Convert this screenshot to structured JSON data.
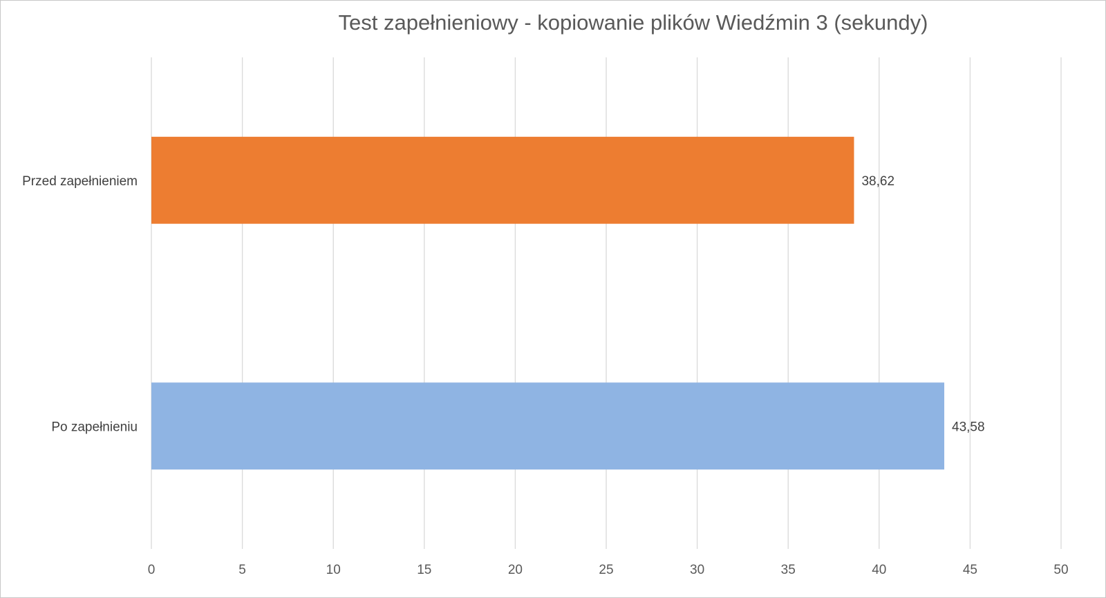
{
  "chart_data": {
    "type": "bar",
    "orientation": "horizontal",
    "title": "Test zapełnieniowy - kopiowanie plików Wiedźmin 3 (sekundy)",
    "xlabel": "",
    "ylabel": "",
    "categories": [
      "Przed zapełnieniem",
      "Po zapełnieniu"
    ],
    "values": [
      38.62,
      43.58
    ],
    "data_labels": [
      "38,62",
      "43,58"
    ],
    "bar_colors": [
      "#ed7d31",
      "#8fb4e3"
    ],
    "xlim": [
      0,
      50
    ],
    "x_ticks": [
      0,
      5,
      10,
      15,
      20,
      25,
      30,
      35,
      40,
      45,
      50
    ],
    "x_tick_labels": [
      "0",
      "5",
      "10",
      "15",
      "20",
      "25",
      "30",
      "35",
      "40",
      "45",
      "50"
    ],
    "grid": true,
    "legend": "none"
  }
}
